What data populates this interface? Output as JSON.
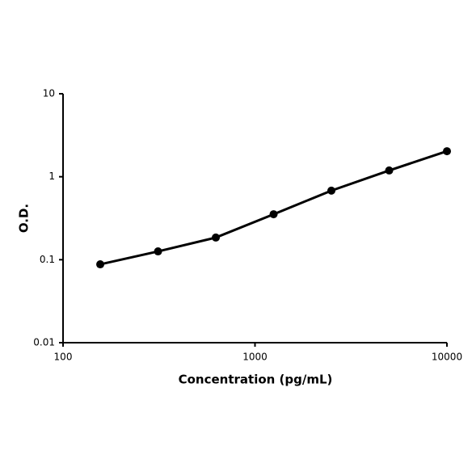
{
  "chart_data": {
    "type": "line",
    "x_label": "Concentration (pg/mL)",
    "y_label": "O.D.",
    "x": [
      156.25,
      312.5,
      625,
      1250,
      2500,
      5000,
      10000
    ],
    "series": [
      {
        "color": "#000000",
        "values": [
          0.088,
          0.126,
          0.185,
          0.353,
          0.68,
          1.19,
          2.03
        ]
      }
    ],
    "xlim": [
      100,
      10000
    ],
    "xticks": [
      100,
      1000,
      10000
    ],
    "ylim": [
      0.01,
      10
    ],
    "yticks": [
      0.01,
      0.1,
      1,
      10
    ],
    "x_log": true,
    "y_log": true,
    "grid": false
  }
}
